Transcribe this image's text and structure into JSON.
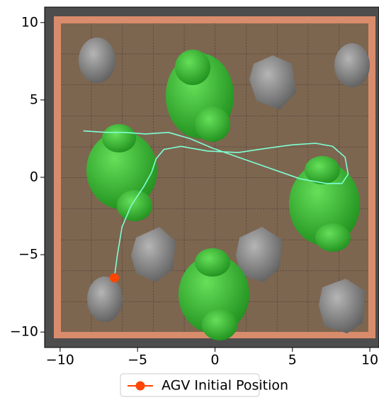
{
  "chart_data": {
    "type": "line",
    "xlim": [
      -11,
      10.5
    ],
    "ylim": [
      -11,
      11
    ],
    "xticks": [
      {
        "value": -10,
        "label": "−10"
      },
      {
        "value": -5,
        "label": "−5"
      },
      0,
      5,
      10
    ],
    "yticks": [
      {
        "value": -10,
        "label": "−10"
      },
      {
        "value": -5,
        "label": "−5"
      },
      0,
      5,
      10
    ],
    "series": [
      {
        "color": "#7fffd4",
        "x": [
          -6.5,
          -6.3,
          -6.0,
          -5.4,
          -4.6,
          -4.1,
          -3.8,
          -3.3,
          -2.2,
          -0.5,
          1.5,
          3.5,
          5.0,
          6.5,
          7.6,
          8.4,
          8.6,
          8.2,
          7.2,
          5.5,
          3.5,
          1.5,
          -0.2,
          -1.6,
          -3.0,
          -4.5,
          -5.8,
          -7.0,
          -8.5
        ],
        "y": [
          -6.5,
          -5.0,
          -3.2,
          -1.8,
          -0.6,
          0.3,
          1.2,
          1.8,
          2.0,
          1.7,
          1.6,
          1.9,
          2.1,
          2.2,
          2.0,
          1.3,
          0.2,
          -0.4,
          -0.4,
          -0.1,
          0.6,
          1.3,
          1.9,
          2.5,
          2.9,
          2.8,
          2.9,
          2.9,
          3.0
        ]
      }
    ],
    "initial_position": {
      "name": "AGV Initial Position",
      "color": "#ff4500",
      "x": -6.5,
      "y": -6.5
    }
  }
}
